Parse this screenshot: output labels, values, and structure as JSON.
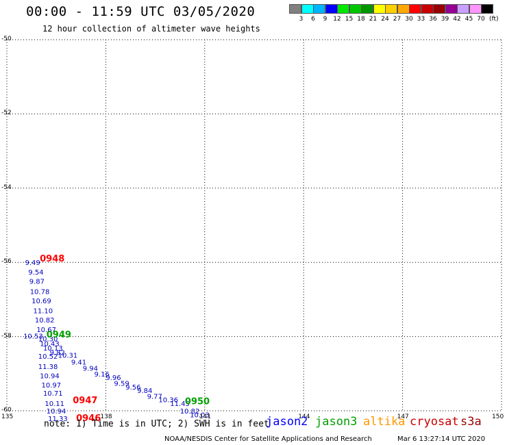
{
  "header": {
    "title": "00:00 - 11:59 UTC 03/05/2020",
    "subtitle": "12 hour collection of altimeter wave heights"
  },
  "legend": {
    "units": "(ft)",
    "items": [
      {
        "label": "",
        "color": "#808080"
      },
      {
        "label": "3",
        "color": "#00ffff"
      },
      {
        "label": "6",
        "color": "#00b4ff"
      },
      {
        "label": "9",
        "color": "#0000ff"
      },
      {
        "label": "12",
        "color": "#00e800"
      },
      {
        "label": "15",
        "color": "#00c800"
      },
      {
        "label": "18",
        "color": "#009600"
      },
      {
        "label": "21",
        "color": "#ffff00"
      },
      {
        "label": "24",
        "color": "#ffd000"
      },
      {
        "label": "27",
        "color": "#ffa800"
      },
      {
        "label": "30",
        "color": "#ff0000"
      },
      {
        "label": "33",
        "color": "#c80000"
      },
      {
        "label": "36",
        "color": "#960000"
      },
      {
        "label": "39",
        "color": "#960096"
      },
      {
        "label": "42",
        "color": "#c8a0ff"
      },
      {
        "label": "45",
        "color": "#ff96ff"
      },
      {
        "label": "70",
        "color": "#000000"
      }
    ]
  },
  "map": {
    "lat_labels": [
      "-50",
      "-52",
      "-54",
      "-56",
      "-58",
      "-60"
    ],
    "lon_labels": [
      "135",
      "138",
      "141",
      "144",
      "147",
      "150"
    ],
    "lon_range": [
      135,
      150
    ],
    "lat_range": [
      -60,
      -50
    ]
  },
  "chart_data": {
    "type": "scatter",
    "x_range": [
      135,
      150
    ],
    "y_range": [
      -60,
      -50
    ],
    "series": [
      {
        "name": "jason2",
        "color": "#0000c0",
        "points": [
          {
            "x": 135.55,
            "y": -56.0,
            "label": "9.49"
          },
          {
            "x": 135.65,
            "y": -56.25,
            "label": "9.54"
          },
          {
            "x": 135.68,
            "y": -56.5,
            "label": "9.87"
          },
          {
            "x": 135.7,
            "y": -56.78,
            "label": "10.78"
          },
          {
            "x": 135.75,
            "y": -57.03,
            "label": "10.69"
          },
          {
            "x": 135.8,
            "y": -57.3,
            "label": "11.10"
          },
          {
            "x": 135.85,
            "y": -57.55,
            "label": "10.82"
          },
          {
            "x": 135.9,
            "y": -57.8,
            "label": "10.67"
          },
          {
            "x": 135.95,
            "y": -58.05,
            "label": "10.30"
          },
          {
            "x": 135.5,
            "y": -57.98,
            "label": "10.53"
          },
          {
            "x": 136.0,
            "y": -58.18,
            "label": "10.43"
          },
          {
            "x": 136.1,
            "y": -58.3,
            "label": "10.13"
          },
          {
            "x": 136.3,
            "y": -58.42,
            "label": "9.82"
          },
          {
            "x": 136.55,
            "y": -58.5,
            "label": "10.31"
          },
          {
            "x": 135.95,
            "y": -58.52,
            "label": "10.52"
          },
          {
            "x": 136.95,
            "y": -58.68,
            "label": "9.41"
          },
          {
            "x": 135.95,
            "y": -58.8,
            "label": "11.38"
          },
          {
            "x": 137.3,
            "y": -58.85,
            "label": "9.94"
          },
          {
            "x": 137.65,
            "y": -59.0,
            "label": "9.16"
          },
          {
            "x": 136.0,
            "y": -59.05,
            "label": "10.94"
          },
          {
            "x": 138.0,
            "y": -59.1,
            "label": "9.96"
          },
          {
            "x": 138.25,
            "y": -59.25,
            "label": "9.59"
          },
          {
            "x": 136.05,
            "y": -59.3,
            "label": "10.97"
          },
          {
            "x": 138.6,
            "y": -59.35,
            "label": "9.56"
          },
          {
            "x": 138.95,
            "y": -59.45,
            "label": "9.84"
          },
          {
            "x": 136.1,
            "y": -59.52,
            "label": "10.71"
          },
          {
            "x": 139.25,
            "y": -59.6,
            "label": "9.77"
          },
          {
            "x": 139.6,
            "y": -59.7,
            "label": "10.36"
          },
          {
            "x": 136.15,
            "y": -59.8,
            "label": "10.11"
          },
          {
            "x": 139.95,
            "y": -59.8,
            "label": "11.45"
          },
          {
            "x": 136.2,
            "y": -60.0,
            "label": "10.94"
          },
          {
            "x": 140.25,
            "y": -60.0,
            "label": "10.82"
          },
          {
            "x": 136.25,
            "y": -60.2,
            "label": "11.33"
          },
          {
            "x": 140.55,
            "y": -60.1,
            "label": "10.03"
          }
        ]
      },
      {
        "name": "jason3",
        "color": "#00a000",
        "points": [
          {
            "x": 136.2,
            "y": -57.95,
            "label": "0949"
          },
          {
            "x": 140.4,
            "y": -59.75,
            "label": "0950"
          }
        ]
      },
      {
        "name": "cryosat",
        "color": "#ff0000",
        "points": [
          {
            "x": 136.0,
            "y": -55.9,
            "label": "0948"
          },
          {
            "x": 137.0,
            "y": -59.72,
            "label": "0947"
          },
          {
            "x": 137.1,
            "y": -60.2,
            "label": "0946"
          }
        ]
      }
    ]
  },
  "footer": {
    "note": "note: 1) Time is in UTC; 2) SWH is in feet",
    "satellites": [
      {
        "name": "jason2",
        "color": "#0000ff"
      },
      {
        "name": "jason3",
        "color": "#00a000"
      },
      {
        "name": "altika",
        "color": "#ff9600"
      },
      {
        "name": "cryosat",
        "color": "#c80000"
      },
      {
        "name": "s3a",
        "color": "#960000"
      }
    ],
    "credit": "NOAA/NESDIS Center for Satellite Applications and Research",
    "timestamp": "Mar 6 13:27:14 UTC 2020"
  }
}
